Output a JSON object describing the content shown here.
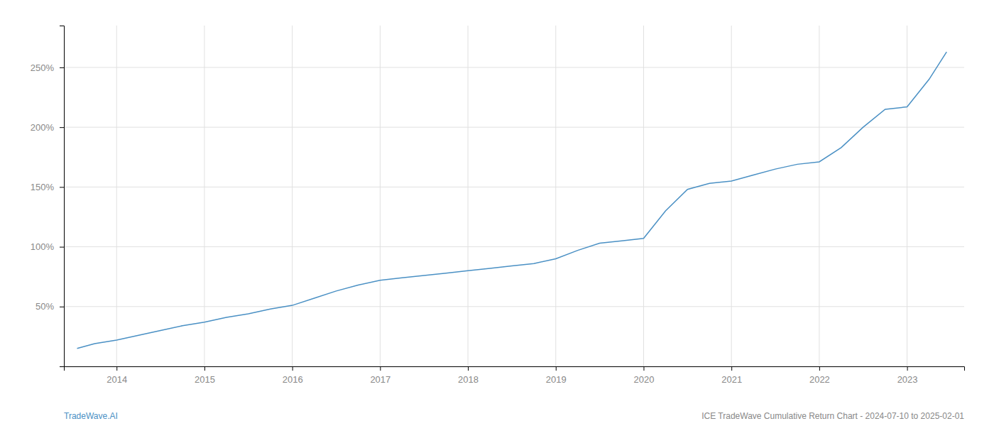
{
  "chart_data": {
    "type": "line",
    "annotations": [
      "TradeWave.AI",
      "ICE TradeWave Cumulative Return Chart - 2024-07-10 to 2025-02-01"
    ],
    "x": [
      2013.55,
      2013.75,
      2014.0,
      2014.25,
      2014.5,
      2014.75,
      2015.0,
      2015.25,
      2015.5,
      2015.75,
      2016.0,
      2016.25,
      2016.5,
      2016.75,
      2017.0,
      2017.25,
      2017.5,
      2017.75,
      2018.0,
      2018.25,
      2018.5,
      2018.75,
      2019.0,
      2019.25,
      2019.5,
      2019.75,
      2020.0,
      2020.25,
      2020.5,
      2020.75,
      2021.0,
      2021.25,
      2021.5,
      2021.75,
      2022.0,
      2022.25,
      2022.5,
      2022.75,
      2023.0,
      2023.25,
      2023.45
    ],
    "values": [
      15,
      19,
      22,
      26,
      30,
      34,
      37,
      41,
      44,
      48,
      51,
      57,
      63,
      68,
      72,
      74,
      76,
      78,
      80,
      82,
      84,
      86,
      90,
      97,
      103,
      105,
      107,
      130,
      148,
      153,
      155,
      160,
      165,
      169,
      171,
      183,
      200,
      215,
      217,
      240,
      263
    ],
    "color": "#4a90c4",
    "xlim": [
      2013.4,
      2023.65
    ],
    "xticks": [
      2014,
      2015,
      2016,
      2017,
      2018,
      2019,
      2020,
      2021,
      2022,
      2023
    ],
    "ylim": [
      0,
      285
    ],
    "yticks": [
      {
        "value": 50,
        "label": "50%"
      },
      {
        "value": 100,
        "label": "100%"
      },
      {
        "value": 150,
        "label": "150%"
      },
      {
        "value": 200,
        "label": "200%"
      },
      {
        "value": 250,
        "label": "250%"
      }
    ],
    "grid": true
  }
}
